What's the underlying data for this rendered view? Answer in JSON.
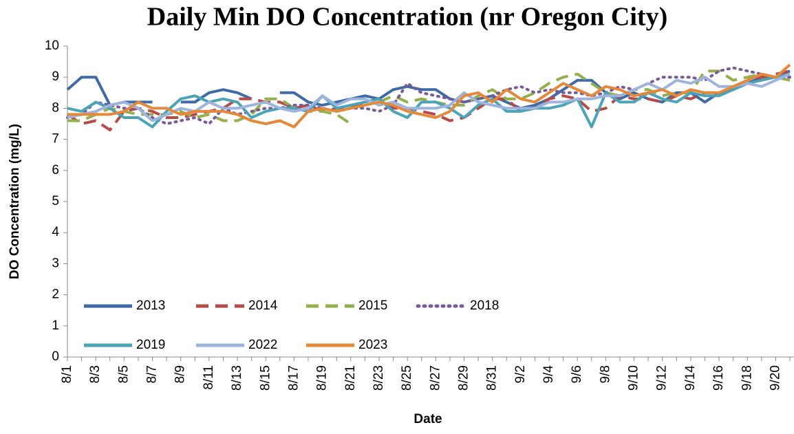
{
  "chart_data": {
    "type": "line",
    "title": "Daily Min DO Concentration (nr Oregon City)",
    "x_label": "Date",
    "y_label": "DO Concentration (mg/L)",
    "categories": [
      "8/1",
      null,
      "8/3",
      null,
      "8/5",
      null,
      "8/7",
      null,
      "8/9",
      null,
      "8/11",
      null,
      "8/13",
      null,
      "8/15",
      null,
      "8/17",
      null,
      "8/19",
      null,
      "8/21",
      null,
      "8/23",
      null,
      "8/25",
      null,
      "8/27",
      null,
      "8/29",
      null,
      "8/31",
      null,
      "9/2",
      null,
      "9/4",
      null,
      "9/6",
      null,
      "9/8",
      null,
      "9/10",
      null,
      "9/12",
      null,
      "9/14",
      null,
      "9/16",
      null,
      "9/18",
      null,
      "9/20",
      null
    ],
    "ylim": [
      0,
      10
    ],
    "yticks": [
      0,
      1,
      2,
      3,
      4,
      5,
      6,
      7,
      8,
      9,
      10
    ],
    "grid": false,
    "legend": "lower left",
    "series": [
      {
        "name": "2013",
        "color": "#3e6aa6",
        "dash": "solid",
        "values": [
          8.6,
          9.0,
          9.0,
          8.1,
          8.2,
          8.2,
          8.2,
          null,
          8.2,
          8.2,
          8.5,
          8.6,
          8.5,
          8.3,
          null,
          8.5,
          8.5,
          8.2,
          8.1,
          8.2,
          8.3,
          8.4,
          8.3,
          8.6,
          8.7,
          8.6,
          8.6,
          8.3,
          8.2,
          8.3,
          8.4,
          8.2,
          8.0,
          8.1,
          8.3,
          8.6,
          8.9,
          8.9,
          8.5,
          8.3,
          8.5,
          8.3,
          8.2,
          8.5,
          8.5,
          8.2,
          8.5,
          8.6,
          8.8,
          9.0,
          9.0,
          9.2
        ]
      },
      {
        "name": "2014",
        "color": "#b64a46",
        "dash": "dashed",
        "values": [
          7.8,
          7.5,
          7.6,
          7.3,
          7.9,
          8.0,
          7.9,
          7.7,
          7.7,
          7.8,
          7.9,
          8.0,
          8.3,
          8.3,
          8.2,
          8.2,
          8.0,
          8.1,
          7.9,
          8.0,
          8.0,
          8.2,
          8.3,
          8.0,
          8.0,
          7.9,
          7.8,
          7.6,
          7.7,
          8.0,
          8.3,
          8.3,
          7.9,
          8.0,
          8.3,
          8.4,
          8.3,
          7.9,
          8.0,
          8.4,
          8.3,
          8.3,
          8.2,
          8.4,
          8.3,
          8.5,
          8.5,
          8.6,
          8.8,
          9.0,
          9.1,
          9.2
        ]
      },
      {
        "name": "2015",
        "color": "#93b04c",
        "dash": "dashed",
        "values": [
          7.6,
          7.6,
          7.8,
          8.0,
          7.9,
          7.8,
          7.8,
          7.8,
          7.9,
          7.7,
          7.8,
          7.6,
          7.6,
          7.8,
          8.3,
          8.3,
          8.0,
          7.9,
          7.9,
          7.8,
          7.5,
          null,
          8.2,
          8.4,
          8.2,
          8.3,
          8.2,
          8.1,
          8.1,
          8.4,
          8.6,
          8.3,
          8.3,
          8.5,
          8.8,
          9.0,
          9.1,
          8.8,
          8.5,
          8.4,
          8.6,
          8.6,
          8.4,
          8.5,
          8.5,
          9.2,
          9.2,
          8.9,
          9.0,
          9.1,
          9.0,
          8.9
        ]
      },
      {
        "name": "2018",
        "color": "#795a98",
        "dash": "dotted",
        "values": [
          7.7,
          7.8,
          8.2,
          8.1,
          8.0,
          8.0,
          7.7,
          7.5,
          7.6,
          7.7,
          7.5,
          8.0,
          7.8,
          7.9,
          8.0,
          8.0,
          8.1,
          8.1,
          8.0,
          7.9,
          8.0,
          8.0,
          7.9,
          8.1,
          8.8,
          8.5,
          8.4,
          8.3,
          8.2,
          8.3,
          8.4,
          8.6,
          8.7,
          8.5,
          8.6,
          8.5,
          8.5,
          8.4,
          8.5,
          8.7,
          8.6,
          8.8,
          9.0,
          9.0,
          9.0,
          8.9,
          9.2,
          9.3,
          9.2,
          9.1,
          9.0,
          9.0
        ]
      },
      {
        "name": "2019",
        "color": "#4ba3b8",
        "dash": "solid",
        "values": [
          8.0,
          7.9,
          8.2,
          8.0,
          7.7,
          7.7,
          7.4,
          7.9,
          8.3,
          8.4,
          8.2,
          8.3,
          8.2,
          7.7,
          7.9,
          8.0,
          8.0,
          7.9,
          8.4,
          8.0,
          8.1,
          8.2,
          8.3,
          7.9,
          7.7,
          8.2,
          8.2,
          8.0,
          7.7,
          8.1,
          8.3,
          7.9,
          7.9,
          8.0,
          8.0,
          8.1,
          8.3,
          7.4,
          8.5,
          8.2,
          8.2,
          8.5,
          8.3,
          8.2,
          8.5,
          8.4,
          8.4,
          8.6,
          8.8,
          8.9,
          9.0,
          9.1
        ]
      },
      {
        "name": "2022",
        "color": "#9eb4dc",
        "dash": "solid",
        "values": [
          7.7,
          7.8,
          7.9,
          8.1,
          8.2,
          8.0,
          7.6,
          7.8,
          8.0,
          7.9,
          8.2,
          8.0,
          8.0,
          8.1,
          8.2,
          8.0,
          7.9,
          8.0,
          8.4,
          8.1,
          8.3,
          8.3,
          8.1,
          8.2,
          8.0,
          8.0,
          8.0,
          8.1,
          8.5,
          8.2,
          8.1,
          8.0,
          8.0,
          8.0,
          8.2,
          8.2,
          8.3,
          8.3,
          8.4,
          8.4,
          8.6,
          8.8,
          8.6,
          8.9,
          8.8,
          9.0,
          8.7,
          8.7,
          8.8,
          8.7,
          8.9,
          9.1
        ]
      },
      {
        "name": "2023",
        "color": "#e5883a",
        "dash": "solid",
        "values": [
          7.8,
          7.8,
          7.8,
          7.8,
          7.9,
          8.2,
          8.0,
          8.0,
          7.8,
          7.9,
          7.9,
          7.9,
          7.8,
          7.6,
          7.5,
          7.6,
          7.4,
          7.9,
          8.0,
          7.9,
          8.0,
          8.1,
          8.2,
          8.1,
          7.9,
          7.8,
          7.7,
          7.9,
          8.4,
          8.5,
          8.2,
          8.6,
          8.3,
          8.2,
          8.5,
          8.8,
          8.6,
          8.4,
          8.7,
          8.6,
          8.4,
          8.5,
          8.6,
          8.4,
          8.6,
          8.5,
          8.5,
          8.7,
          8.9,
          9.1,
          9.0,
          9.4
        ]
      }
    ]
  }
}
